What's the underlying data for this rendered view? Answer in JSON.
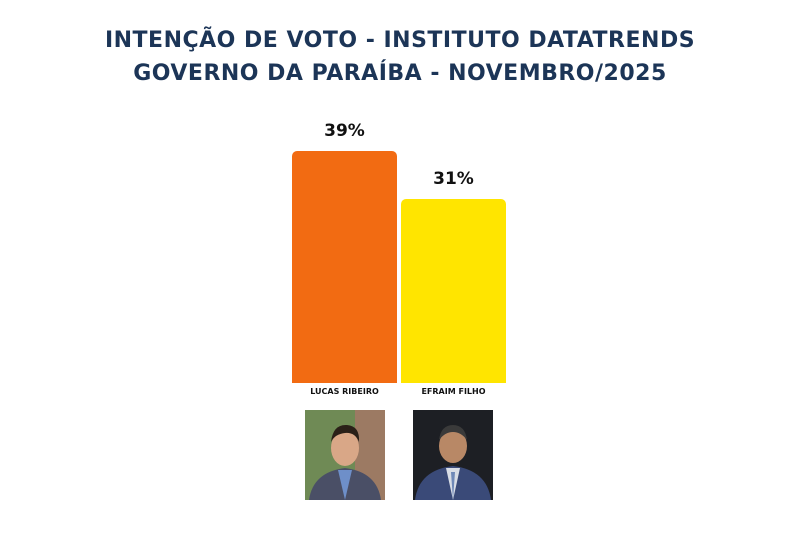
{
  "chart_data": {
    "type": "bar",
    "title": "INTENÇÃO DE VOTO - INSTITUTO DATATRENDS",
    "subtitle": "GOVERNO DA PARAÍBA - NOVEMBRO/2025",
    "categories": [
      "LUCAS RIBEIRO",
      "EFRAIM FILHO"
    ],
    "values": [
      39,
      31
    ],
    "value_labels": [
      "39%",
      "31%"
    ],
    "colors": [
      "#f26b12",
      "#ffe500"
    ]
  }
}
